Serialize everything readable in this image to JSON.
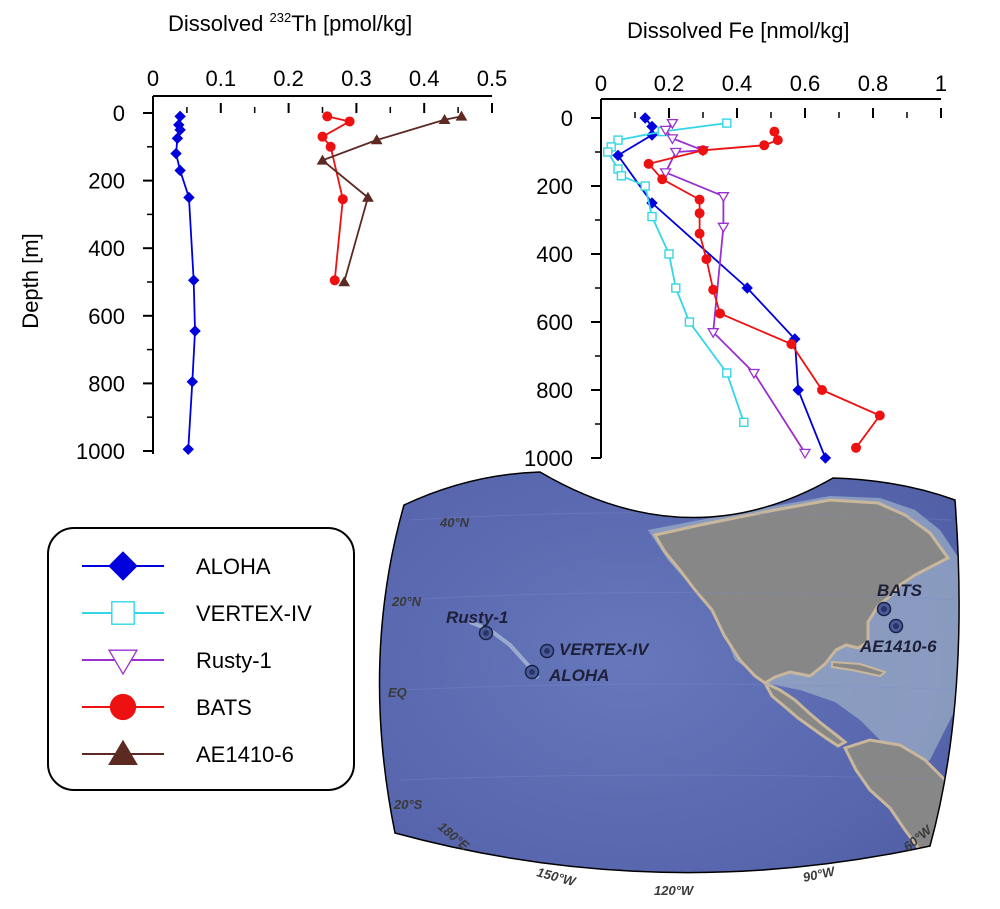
{
  "chart_data": [
    {
      "type": "line",
      "title": "",
      "xlabel_main": "Dissolved ",
      "xlabel_sup": "232",
      "xlabel_rest": "Th [pmol/kg]",
      "ylabel": "Depth [m]",
      "xlim": [
        0,
        0.5
      ],
      "ylim": [
        0,
        1000
      ],
      "y_inverted": true,
      "xticks": [
        "0",
        "0.1",
        "0.2",
        "0.3",
        "0.4",
        "0.5"
      ],
      "yticks": [
        "0",
        "200",
        "400",
        "600",
        "800",
        "1000"
      ],
      "series": [
        {
          "name": "ALOHA",
          "x": [
            0.04,
            0.038,
            0.04,
            0.036,
            0.034,
            0.04,
            0.053,
            0.06,
            0.062,
            0.058,
            0.052
          ],
          "y": [
            10,
            35,
            50,
            75,
            120,
            170,
            250,
            495,
            645,
            795,
            995
          ]
        },
        {
          "name": "BATS",
          "x": [
            0.257,
            0.29,
            0.25,
            0.262,
            0.28,
            0.268
          ],
          "y": [
            10,
            25,
            70,
            100,
            255,
            495
          ]
        },
        {
          "name": "AE1410-6",
          "x": [
            0.455,
            0.43,
            0.33,
            0.25,
            0.317,
            0.282
          ],
          "y": [
            10,
            20,
            80,
            140,
            250,
            500
          ]
        }
      ]
    },
    {
      "type": "line",
      "title": "",
      "xlabel": "Dissolved Fe [nmol/kg]",
      "ylabel": "",
      "xlim": [
        0,
        1
      ],
      "ylim": [
        0,
        1000
      ],
      "y_inverted": true,
      "xticks": [
        "0",
        "0.2",
        "0.4",
        "0.6",
        "0.8",
        "1"
      ],
      "yticks": [
        "0",
        "200",
        "400",
        "600",
        "800",
        "1000"
      ],
      "series": [
        {
          "name": "ALOHA",
          "x": [
            0.13,
            0.15,
            0.15,
            0.05,
            0.15,
            0.43,
            0.57,
            0.58,
            0.66
          ],
          "y": [
            0,
            25,
            50,
            110,
            250,
            500,
            650,
            800,
            1000
          ]
        },
        {
          "name": "VERTEX-IV",
          "x": [
            0.37,
            0.18,
            0.05,
            0.03,
            0.02,
            0.05,
            0.06,
            0.13,
            0.15,
            0.2,
            0.22,
            0.26,
            0.37,
            0.42
          ],
          "y": [
            15,
            40,
            65,
            85,
            100,
            150,
            170,
            200,
            290,
            400,
            500,
            600,
            750,
            895
          ]
        },
        {
          "name": "Rusty-1",
          "x": [
            0.21,
            0.19,
            0.21,
            0.3,
            0.22,
            0.19,
            0.36,
            0.36,
            0.33,
            0.45,
            0.6
          ],
          "y": [
            15,
            35,
            60,
            95,
            100,
            160,
            230,
            320,
            630,
            750,
            985
          ]
        },
        {
          "name": "BATS",
          "x": [
            0.51,
            0.52,
            0.48,
            0.3,
            0.14,
            0.18,
            0.29,
            0.29,
            0.29,
            0.31,
            0.33,
            0.35,
            0.56,
            0.65,
            0.82,
            0.75
          ],
          "y": [
            40,
            65,
            80,
            95,
            135,
            180,
            240,
            280,
            340,
            415,
            505,
            575,
            665,
            800,
            875,
            970
          ]
        }
      ]
    }
  ],
  "legend": {
    "items": [
      {
        "name": "ALOHA",
        "color": "#0000dd",
        "marker": "diamond"
      },
      {
        "name": "VERTEX-IV",
        "color": "#33d6e6",
        "marker": "open-square"
      },
      {
        "name": "Rusty-1",
        "color": "#9b30d0",
        "marker": "open-triangle-down"
      },
      {
        "name": "BATS",
        "color": "#ee1111",
        "marker": "circle"
      },
      {
        "name": "AE1410-6",
        "color": "#5c2a22",
        "marker": "triangle-up"
      }
    ]
  },
  "map": {
    "lat_labels": [
      "40°N",
      "20°N",
      "EQ",
      "20°S"
    ],
    "lon_labels": [
      "180°E",
      "150°W",
      "120°W",
      "90°W",
      "60°W"
    ],
    "sites": [
      "Rusty-1",
      "VERTEX-IV",
      "ALOHA",
      "BATS",
      "AE1410-6"
    ],
    "colors": {
      "ocean": "#5a6bb0",
      "land": "#868686",
      "shelf": "#b9a890"
    }
  }
}
